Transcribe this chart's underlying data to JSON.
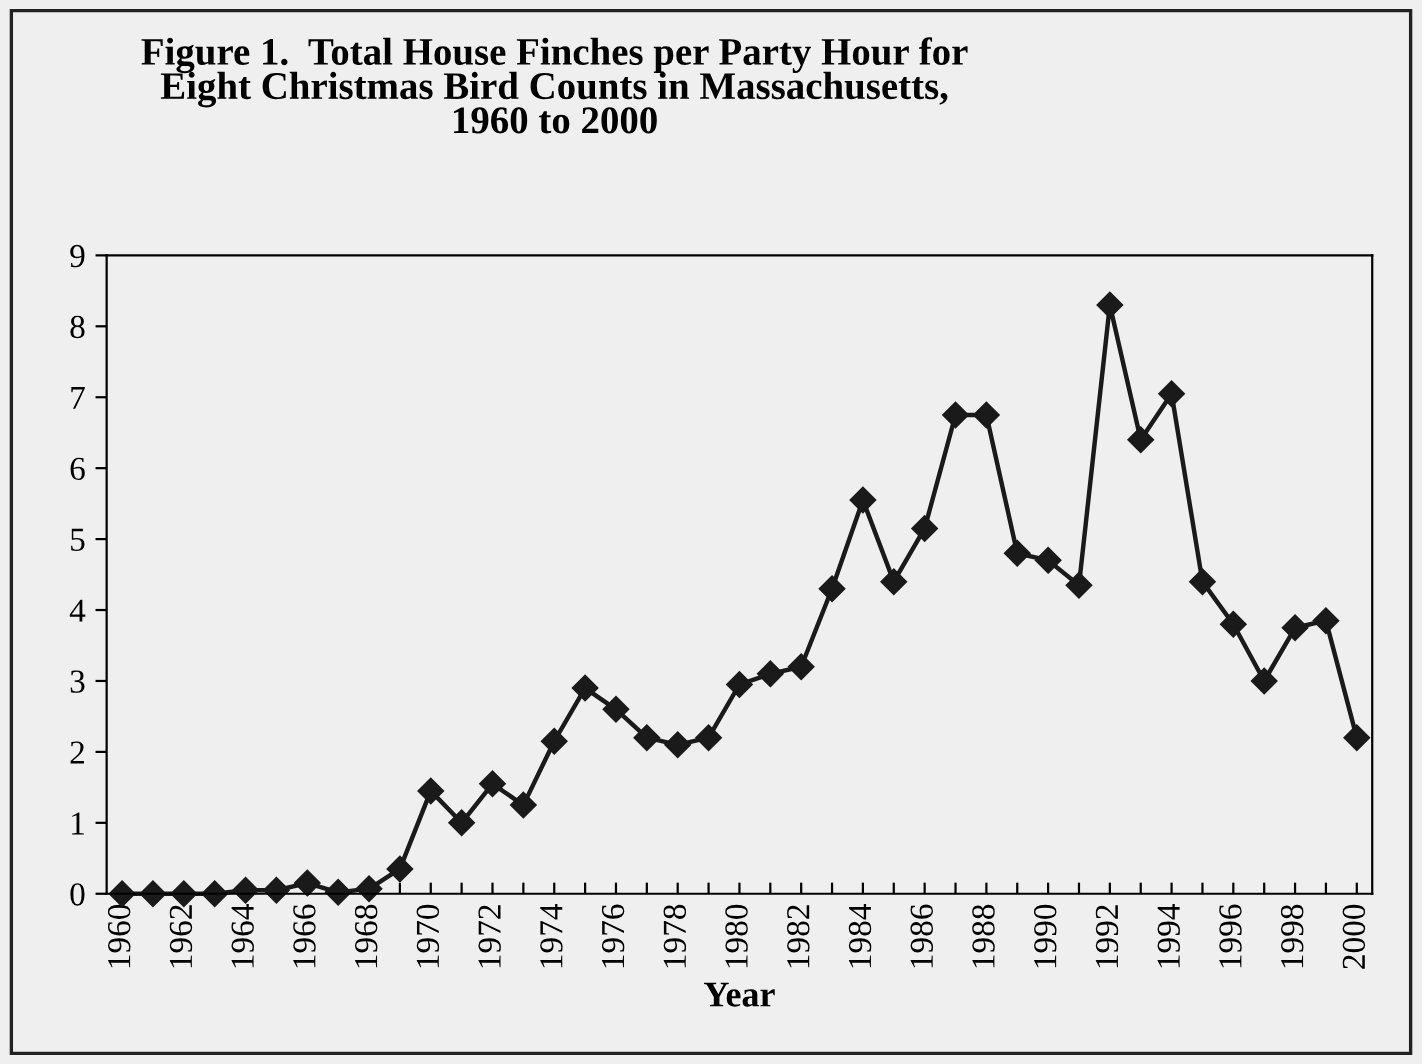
{
  "chart_data": {
    "type": "line",
    "title": "Figure 1.  Total House Finches per Party Hour for\nEight Christmas Bird Counts in Massachusetts,\n1960 to 2000",
    "xlabel": "Year",
    "categories": [
      "1960",
      null,
      "1962",
      null,
      "1964",
      null,
      "1966",
      null,
      "1968",
      null,
      "1970",
      null,
      "1972",
      null,
      "1974",
      null,
      "1976",
      null,
      "1978",
      null,
      "1980",
      null,
      "1982",
      null,
      "1984",
      null,
      "1986",
      null,
      "1988",
      null,
      "1990",
      null,
      "1992",
      null,
      "1994",
      null,
      "1996",
      null,
      "1998",
      null,
      "2000"
    ],
    "series": [
      {
        "color": "#1a1a1a",
        "values": [
          0,
          0,
          0,
          0,
          0.05,
          0.05,
          0.15,
          0.02,
          0.07,
          0.35,
          1.45,
          1.0,
          1.55,
          1.25,
          2.15,
          2.9,
          2.6,
          2.2,
          2.1,
          2.2,
          2.95,
          3.1,
          3.2,
          4.3,
          5.55,
          4.4,
          5.15,
          6.75,
          6.75,
          4.8,
          4.7,
          4.35,
          8.3,
          6.4,
          7.05,
          4.4,
          3.8,
          3.0,
          3.75,
          3.85,
          2.2
        ]
      }
    ],
    "ylim": [
      0,
      9
    ],
    "yticks": [
      0,
      1,
      2,
      3,
      4,
      5,
      6,
      7,
      8,
      9
    ],
    "marker": "diamond",
    "line_style": "solid",
    "grid": false,
    "legend": false
  }
}
